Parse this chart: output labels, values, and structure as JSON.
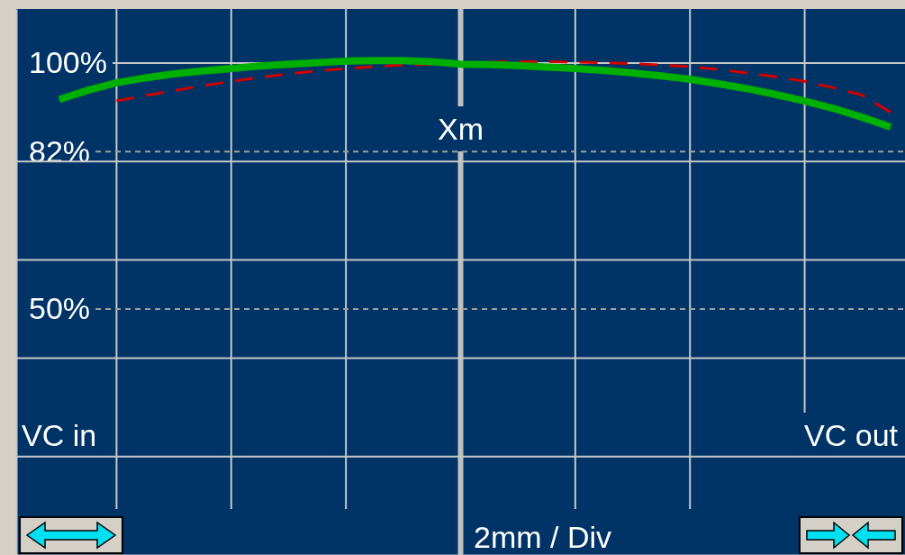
{
  "chart_data": {
    "type": "line",
    "xlabel": "2mm / Div",
    "categories": [
      null,
      null,
      null,
      null,
      null,
      null,
      null,
      null,
      null,
      null,
      null,
      null,
      null,
      null,
      null,
      null,
      null,
      null,
      null,
      null,
      null,
      null,
      null,
      null,
      null,
      null,
      null,
      null,
      null,
      null,
      null
    ],
    "ylim": [
      0,
      111
    ],
    "yticks": [
      {
        "value": 20,
        "label": null
      },
      {
        "value": 40,
        "label": null
      },
      {
        "value": 50,
        "label": "50%"
      },
      {
        "value": 60,
        "label": null
      },
      {
        "value": 80,
        "label": null
      },
      {
        "value": 82,
        "label": "82%"
      },
      {
        "value": 100,
        "label": "100%"
      }
    ],
    "grid": true,
    "series": [
      {
        "color": "#00b000",
        "line_style": "solid",
        "values": [
          null,
          92.6,
          94.5,
          96,
          97,
          97.8,
          98.4,
          98.9,
          99.4,
          99.8,
          100.1,
          100.4,
          100.5,
          100.5,
          100.3,
          99.8,
          99.7,
          99.5,
          99.2,
          98.9,
          98.5,
          98,
          97.4,
          96.7,
          95.8,
          94.8,
          93.6,
          92.3,
          90.8,
          89,
          87
        ]
      },
      {
        "color": "#d00000",
        "line_style": "dashed",
        "values": [
          null,
          null,
          null,
          92.3,
          93.4,
          94.4,
          95.4,
          96.3,
          97.1,
          97.8,
          98.4,
          98.9,
          99.3,
          99.6,
          99.8,
          null,
          100.2,
          100.3,
          100.3,
          100.2,
          100.1,
          99.9,
          99.6,
          99.3,
          98.7,
          98,
          97.2,
          96.3,
          95,
          93.5,
          90
        ]
      }
    ],
    "annotations": [
      "Xm",
      "VC in",
      "VC out"
    ]
  }
}
